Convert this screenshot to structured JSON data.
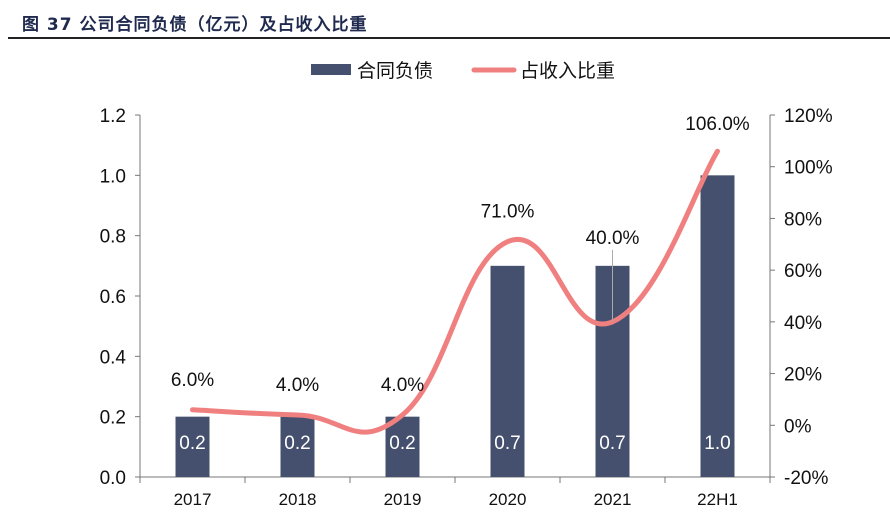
{
  "chart_data": {
    "type": "bar+line",
    "title": "图 37 公司合同负债（亿元）及占收入比重",
    "categories": [
      "2017",
      "2018",
      "2019",
      "2020",
      "2021",
      "22H1"
    ],
    "series": [
      {
        "name": "合同负债",
        "type": "bar",
        "axis": "left",
        "values": [
          0.2,
          0.2,
          0.2,
          0.7,
          0.7,
          1.0
        ],
        "labels": [
          "0.2",
          "0.2",
          "0.2",
          "0.7",
          "0.7",
          "1.0"
        ],
        "color": "#44506e"
      },
      {
        "name": "占收入比重",
        "type": "line",
        "axis": "right",
        "smooth": true,
        "values": [
          6,
          4,
          4,
          71,
          40,
          106
        ],
        "labels": [
          "6.0%",
          "4.0%",
          "4.0%",
          "71.0%",
          "40.0%",
          "106.0%"
        ],
        "color": "#f08080"
      }
    ],
    "left_axis": {
      "range": [
        0,
        1.2
      ],
      "ticks": [
        "0.0",
        "0.2",
        "0.4",
        "0.6",
        "0.8",
        "1.0",
        "1.2"
      ]
    },
    "right_axis": {
      "range": [
        -20,
        120
      ],
      "ticks": [
        "-20%",
        "0%",
        "20%",
        "40%",
        "60%",
        "80%",
        "100%",
        "120%"
      ]
    },
    "grid": false,
    "legend": "top"
  }
}
